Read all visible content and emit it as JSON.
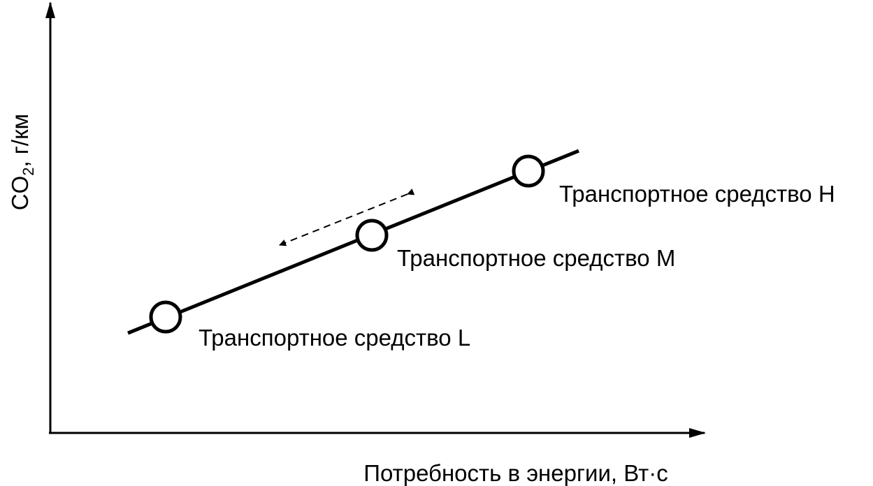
{
  "axes": {
    "x_label": "Потребность в энергии, Вт·с",
    "y_label": {
      "main": "CO",
      "subscript": "2",
      "rest": ", г/км"
    }
  },
  "nodes": [
    {
      "label": "Транспортное средство L"
    },
    {
      "label": "Транспортное средство M"
    },
    {
      "label": "Транспортное средство H"
    }
  ]
}
